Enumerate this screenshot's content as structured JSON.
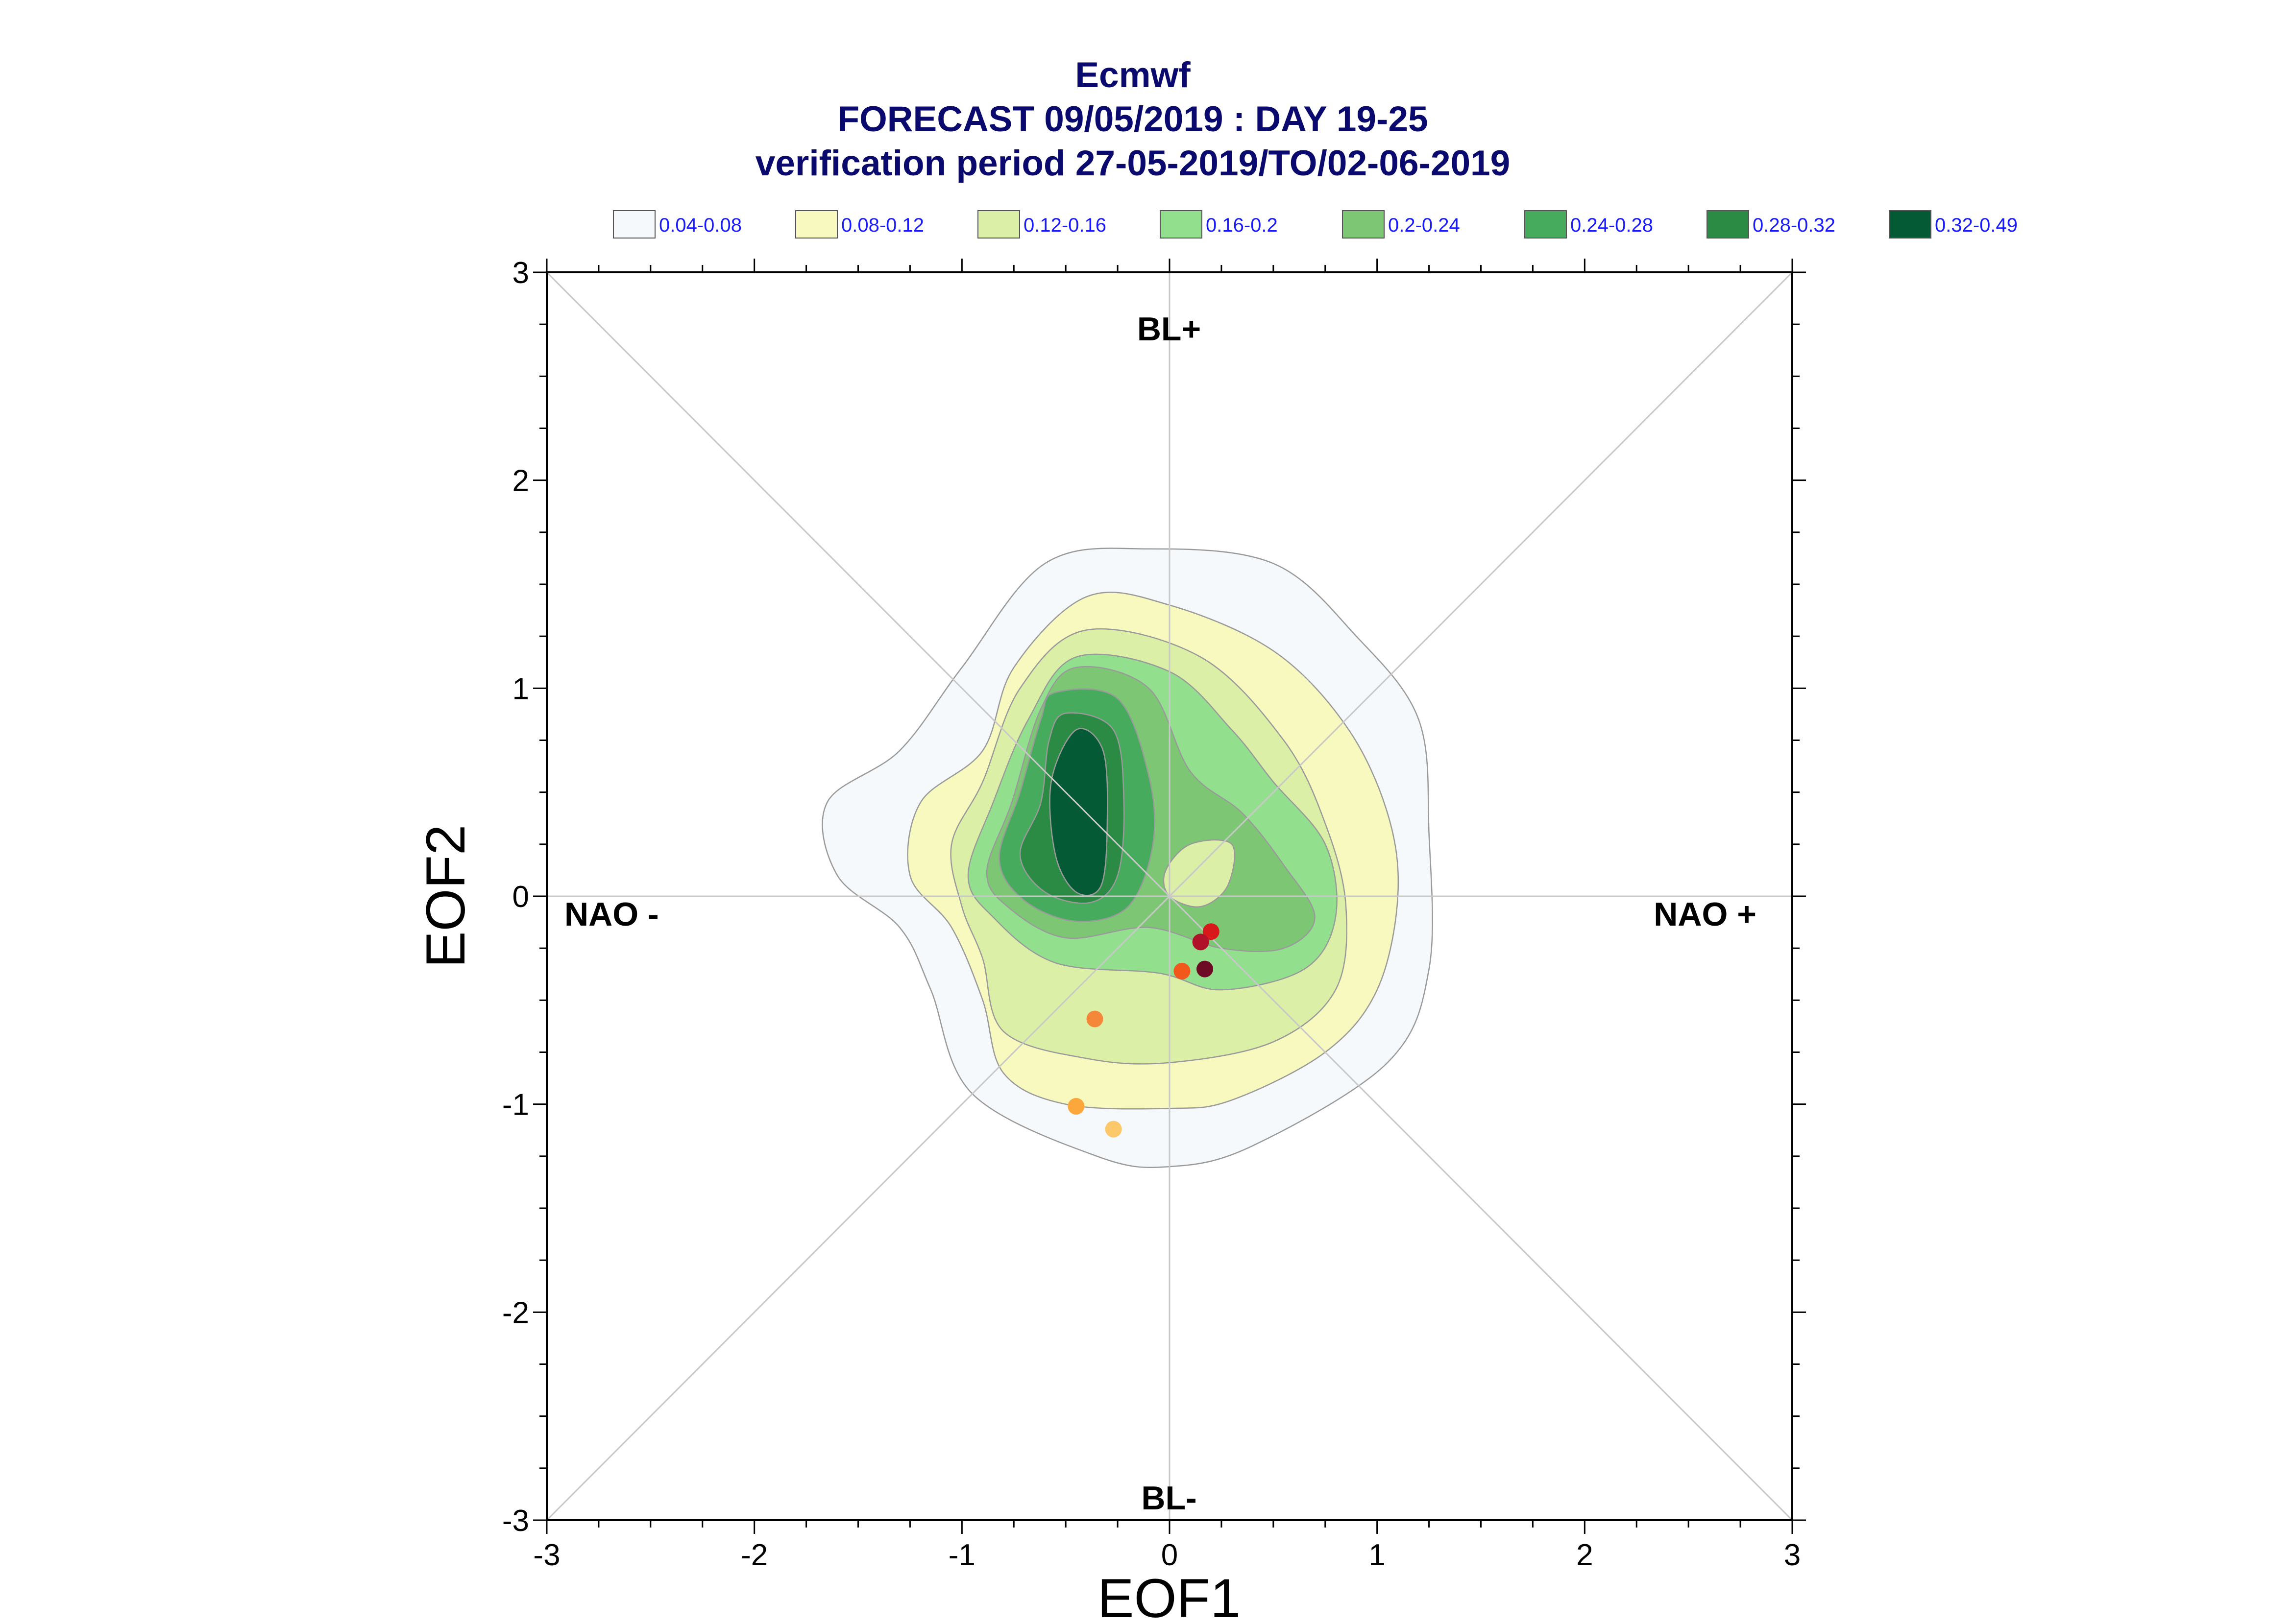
{
  "colors": {
    "title": "#0a0a6e",
    "legend_text": "#1a1aff",
    "frame": "#000000",
    "gridline": "#c8c8c8",
    "contour_line": "#9a9a9a"
  },
  "chart_data": {
    "type": "contour-scatter",
    "title": [
      "Ecmwf",
      "FORECAST 09/05/2019 : DAY 19-25",
      "verification period 27-05-2019/TO/02-06-2019"
    ],
    "xlabel": "EOF1",
    "ylabel": "EOF2",
    "xlim": [
      -3,
      3
    ],
    "ylim": [
      -3,
      3
    ],
    "x_ticks": [
      "-3",
      "-2",
      "-1",
      "0",
      "1",
      "2",
      "3"
    ],
    "y_ticks": [
      "-3",
      "-2",
      "-1",
      "0",
      "1",
      "2",
      "3"
    ],
    "regime_labels": {
      "top": "BL+",
      "bottom": "BL-",
      "left": "NAO -",
      "right": "NAO +"
    },
    "legend": [
      {
        "label": "0.04-0.08",
        "color": "#f5f9fc"
      },
      {
        "label": "0.08-0.12",
        "color": "#f7f9bf"
      },
      {
        "label": "0.12-0.16",
        "color": "#dcefa6"
      },
      {
        "label": "0.16-0.2",
        "color": "#92e08e"
      },
      {
        "label": "0.2-0.24",
        "color": "#7cc674"
      },
      {
        "label": "0.24-0.28",
        "color": "#46ab5c"
      },
      {
        "label": "0.28-0.32",
        "color": "#2b8a43"
      },
      {
        "label": "0.32-0.49",
        "color": "#045a34"
      }
    ],
    "density_levels": [
      {
        "range": "0.04-0.08",
        "color": "#f5f9fc",
        "points": [
          [
            -0.1,
            1.67
          ],
          [
            0.5,
            1.6
          ],
          [
            0.9,
            1.25
          ],
          [
            1.2,
            0.85
          ],
          [
            1.25,
            0.3
          ],
          [
            1.25,
            -0.35
          ],
          [
            1.05,
            -0.8
          ],
          [
            0.4,
            -1.2
          ],
          [
            0.0,
            -1.3
          ],
          [
            -0.35,
            -1.25
          ],
          [
            -0.95,
            -0.95
          ],
          [
            -1.15,
            -0.45
          ],
          [
            -1.3,
            -0.15
          ],
          [
            -1.6,
            0.1
          ],
          [
            -1.65,
            0.45
          ],
          [
            -1.3,
            0.7
          ],
          [
            -1.0,
            1.1
          ],
          [
            -0.6,
            1.6
          ]
        ]
      },
      {
        "range": "0.08-0.12",
        "color": "#f7f9bf",
        "points": [
          [
            -0.4,
            1.44
          ],
          [
            0.0,
            1.4
          ],
          [
            0.5,
            1.18
          ],
          [
            0.85,
            0.82
          ],
          [
            1.05,
            0.4
          ],
          [
            1.1,
            0.0
          ],
          [
            1.0,
            -0.45
          ],
          [
            0.75,
            -0.75
          ],
          [
            0.3,
            -0.98
          ],
          [
            0.0,
            -1.02
          ],
          [
            -0.5,
            -1.0
          ],
          [
            -0.8,
            -0.85
          ],
          [
            -0.9,
            -0.5
          ],
          [
            -1.05,
            -0.15
          ],
          [
            -1.25,
            0.1
          ],
          [
            -1.2,
            0.45
          ],
          [
            -0.9,
            0.7
          ],
          [
            -0.75,
            1.1
          ]
        ]
      },
      {
        "range": "0.12-0.16",
        "color": "#dcefa6",
        "points": [
          [
            -0.4,
            1.28
          ],
          [
            0.15,
            1.15
          ],
          [
            0.55,
            0.75
          ],
          [
            0.75,
            0.35
          ],
          [
            0.85,
            -0.05
          ],
          [
            0.8,
            -0.45
          ],
          [
            0.5,
            -0.7
          ],
          [
            0.0,
            -0.8
          ],
          [
            -0.4,
            -0.78
          ],
          [
            -0.8,
            -0.65
          ],
          [
            -0.9,
            -0.3
          ],
          [
            -1.0,
            -0.05
          ],
          [
            -1.05,
            0.25
          ],
          [
            -0.9,
            0.55
          ],
          [
            -0.72,
            1.0
          ]
        ]
      },
      {
        "range": "0.16-0.2",
        "color": "#92e08e",
        "points": [
          [
            -0.45,
            1.15
          ],
          [
            0.0,
            1.08
          ],
          [
            0.3,
            0.8
          ],
          [
            0.5,
            0.55
          ],
          [
            0.75,
            0.25
          ],
          [
            0.8,
            -0.1
          ],
          [
            0.65,
            -0.35
          ],
          [
            0.25,
            -0.45
          ],
          [
            -0.05,
            -0.37
          ],
          [
            -0.55,
            -0.32
          ],
          [
            -0.85,
            -0.1
          ],
          [
            -0.97,
            0.1
          ],
          [
            -0.85,
            0.45
          ],
          [
            -0.68,
            0.85
          ]
        ]
      },
      {
        "range": "0.2-0.24",
        "color": "#7cc674",
        "points": [
          [
            -0.45,
            1.1
          ],
          [
            -0.1,
            1.0
          ],
          [
            0.1,
            0.6
          ],
          [
            0.35,
            0.4
          ],
          [
            0.55,
            0.15
          ],
          [
            0.7,
            -0.1
          ],
          [
            0.55,
            -0.25
          ],
          [
            0.25,
            -0.25
          ],
          [
            -0.1,
            -0.15
          ],
          [
            -0.5,
            -0.2
          ],
          [
            -0.78,
            -0.05
          ],
          [
            -0.88,
            0.12
          ],
          [
            -0.76,
            0.45
          ],
          [
            -0.62,
            0.9
          ]
        ]
      },
      {
        "range": "0.24-0.28",
        "color": "#46ab5c",
        "points": [
          [
            -0.55,
            0.98
          ],
          [
            -0.25,
            0.95
          ],
          [
            -0.1,
            0.58
          ],
          [
            -0.08,
            0.25
          ],
          [
            -0.2,
            -0.05
          ],
          [
            -0.45,
            -0.12
          ],
          [
            -0.7,
            -0.02
          ],
          [
            -0.82,
            0.18
          ],
          [
            -0.72,
            0.5
          ],
          [
            -0.62,
            0.85
          ]
        ]
      },
      {
        "range": "0.28-0.32",
        "color": "#2b8a43",
        "points": [
          [
            -0.5,
            0.88
          ],
          [
            -0.27,
            0.8
          ],
          [
            -0.22,
            0.45
          ],
          [
            -0.25,
            0.1
          ],
          [
            -0.38,
            -0.03
          ],
          [
            -0.6,
            0.02
          ],
          [
            -0.72,
            0.2
          ],
          [
            -0.62,
            0.45
          ],
          [
            -0.58,
            0.75
          ]
        ]
      },
      {
        "range": "0.32-0.49",
        "color": "#045a34",
        "points": [
          [
            -0.45,
            0.8
          ],
          [
            -0.32,
            0.7
          ],
          [
            -0.3,
            0.35
          ],
          [
            -0.33,
            0.05
          ],
          [
            -0.45,
            0.02
          ],
          [
            -0.55,
            0.2
          ],
          [
            -0.57,
            0.55
          ]
        ]
      },
      {
        "range": "0.12-0.16",
        "color": "#dcefa6",
        "points": [
          [
            0.1,
            0.25
          ],
          [
            0.3,
            0.25
          ],
          [
            0.28,
            0.05
          ],
          [
            0.15,
            -0.05
          ],
          [
            0.0,
            0.0
          ],
          [
            -0.02,
            0.12
          ]
        ]
      }
    ],
    "scatter_points": [
      {
        "x": 0.2,
        "y": -0.17,
        "color": "#d7191c"
      },
      {
        "x": 0.15,
        "y": -0.22,
        "color": "#b0122a"
      },
      {
        "x": 0.17,
        "y": -0.35,
        "color": "#6e0b24"
      },
      {
        "x": 0.06,
        "y": -0.36,
        "color": "#f2571c"
      },
      {
        "x": -0.36,
        "y": -0.59,
        "color": "#f5873a"
      },
      {
        "x": -0.45,
        "y": -1.01,
        "color": "#fba73c"
      },
      {
        "x": -0.27,
        "y": -1.12,
        "color": "#fdc86a"
      }
    ]
  }
}
